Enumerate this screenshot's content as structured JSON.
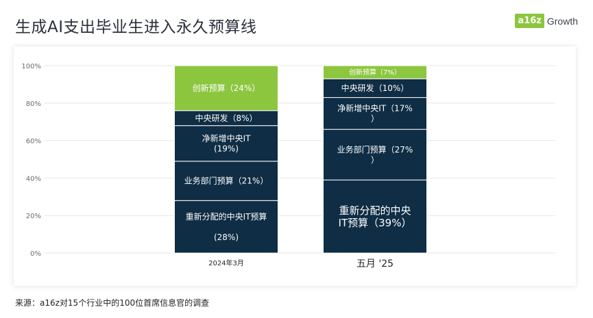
{
  "header": {
    "title": "生成AI支出毕业生进入永久预算线",
    "logo_mark": "a16z",
    "logo_text": "Growth"
  },
  "footer": {
    "source": "来源：a16z对15个行业中的100位首席信息官的调查"
  },
  "colors": {
    "dark_bar": "#0f2d44",
    "green_bar": "#8cc63f",
    "grid": "#e6e6e6",
    "axis_text": "#6b6b6b"
  },
  "chart_data": {
    "type": "bar",
    "stacked": true,
    "ylim": [
      0,
      100
    ],
    "yticks": [
      "0%",
      "20%",
      "40%",
      "60%",
      "80%",
      "100%"
    ],
    "grid": true,
    "categories": [
      "2024年3月",
      "五月 '25"
    ],
    "series": [
      {
        "name": "重新分配的中央IT预算",
        "values": [
          28,
          39
        ],
        "color": "#0f2d44",
        "labels": [
          "重新分配的中央IT预算\n\n(28%)",
          "重新分配的中央\nIT预算（39%）"
        ]
      },
      {
        "name": "业务部门预算",
        "values": [
          21,
          27
        ],
        "color": "#0f2d44",
        "labels": [
          "业务部门预算（21%）",
          "业务部门预算（27%\n）"
        ]
      },
      {
        "name": "净新增中央IT",
        "values": [
          19,
          17
        ],
        "color": "#0f2d44",
        "labels": [
          "净新增中央IT\n(19%)",
          "净新增中央IT（17%\n）"
        ]
      },
      {
        "name": "中央研发",
        "values": [
          8,
          10
        ],
        "color": "#0f2d44",
        "labels": [
          "中央研发（8%）",
          "中央研发（10%）"
        ]
      },
      {
        "name": "创新预算",
        "values": [
          24,
          7
        ],
        "color": "#8cc63f",
        "labels": [
          "创新预算（24%）",
          "创新预算（7%）"
        ]
      }
    ]
  }
}
